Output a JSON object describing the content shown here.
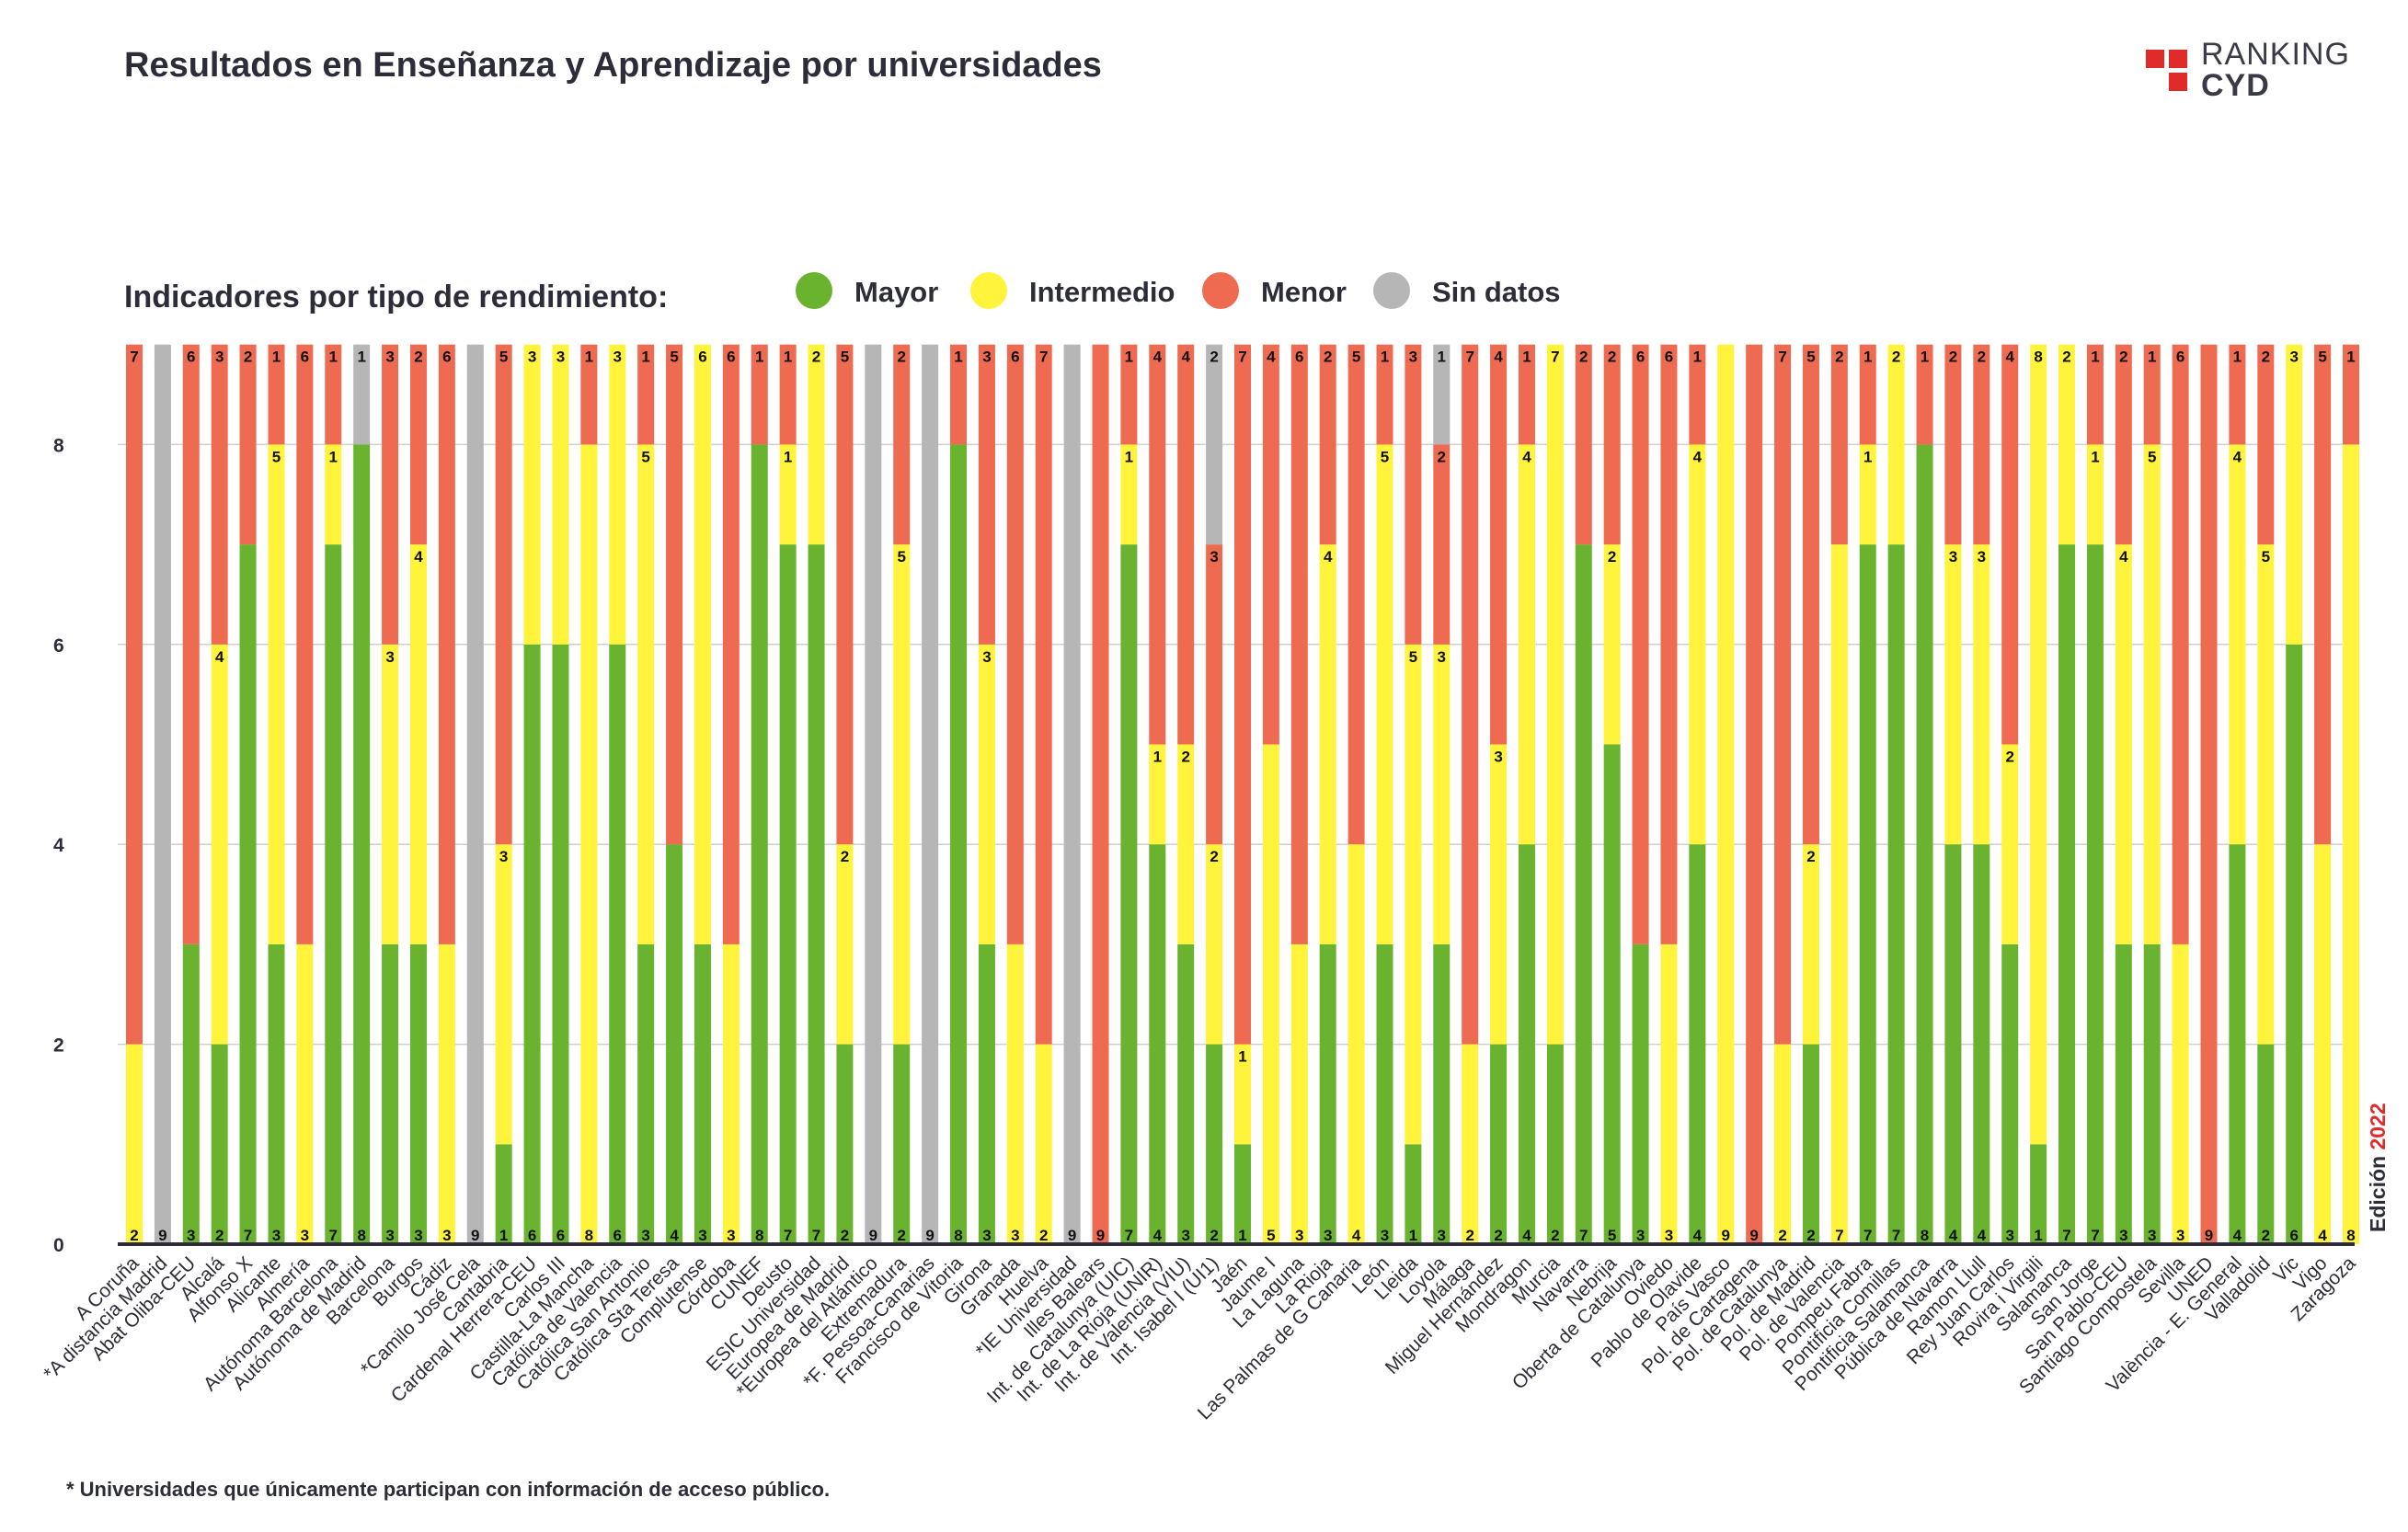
{
  "title": "Resultados en Enseñanza y Aprendizaje por universidades",
  "logo": {
    "line1": "RANKING",
    "line2": "CYD"
  },
  "legend_title": "Indicadores por tipo de rendimiento:",
  "legend": [
    {
      "label": "Mayor",
      "color": "#6ab32e"
    },
    {
      "label": "Intermedio",
      "color": "#fff33b"
    },
    {
      "label": "Menor",
      "color": "#ee6b52"
    },
    {
      "label": "Sin datos",
      "color": "#b6b6b6"
    }
  ],
  "footnote": "* Universidades que únicamente participan con información de acceso público.",
  "edition": {
    "label": "Edición",
    "year": "2022"
  },
  "chart_data": {
    "type": "bar",
    "stacked": true,
    "ylim": [
      0,
      9
    ],
    "yticks": [
      "0",
      "2",
      "4",
      "6",
      "8"
    ],
    "grid": true,
    "categories": [
      "A Coruña",
      "*A distancia Madrid",
      "Abat Oliba-CEU",
      "Alcalá",
      "Alfonso X",
      "Alicante",
      "Almería",
      "Autónoma Barcelona",
      "Autónoma de Madrid",
      "Barcelona",
      "Burgos",
      "Cádiz",
      "*Camilo José Cela",
      "Cantabria",
      "Cardenal Herrera-CEU",
      "Carlos III",
      "Castilla-La Mancha",
      "Católica de Valencia",
      "Católica San Antonio",
      "Católica Sta Teresa",
      "Complutense",
      "Córdoba",
      "CUNEF",
      "Deusto",
      "ESIC Universidad",
      "Europea de Madrid",
      "*Europea del Atlántico",
      "Extremadura",
      "*F. Pessoa-Canarias",
      "Francisco de Vitoria",
      "Girona",
      "Granada",
      "Huelva",
      "*IE Universidad",
      "Illes Balears",
      "Int. de Catalunya (UIC)",
      "Int. de La Rioja (UNIR)",
      "Int. de Valencia (VIU)",
      "Int. Isabel I (UI1)",
      "Jaén",
      "Jaume I",
      "La Laguna",
      "La Rioja",
      "Las Palmas de G Canaria",
      "León",
      "Lleida",
      "Loyola",
      "Málaga",
      "Miguel Hernández",
      "Mondragon",
      "Murcia",
      "Navarra",
      "Nebrija",
      "Oberta de Catalunya",
      "Oviedo",
      "Pablo de Olavide",
      "País Vasco",
      "Pol. de Cartagena",
      "Pol. de Catalunya",
      "Pol. de Madrid",
      "Pol. de Valencia",
      "Pompeu Fabra",
      "Pontificia Comillas",
      "Pontificia Salamanca",
      "Pública de Navarra",
      "Ramon Llull",
      "Rey Juan Carlos",
      "Rovira i Virgili",
      "Salamanca",
      "San Jorge",
      "San Pablo-CEU",
      "Santiago Compostela",
      "Sevilla",
      "UNED",
      "València - E. General",
      "Valladolid",
      "Vic",
      "Vigo",
      "Zaragoza"
    ],
    "series": [
      {
        "name": "Mayor",
        "color": "#6ab32e",
        "values": [
          0,
          0,
          3,
          2,
          7,
          3,
          0,
          7,
          8,
          3,
          3,
          0,
          0,
          1,
          6,
          6,
          0,
          6,
          3,
          4,
          3,
          0,
          8,
          7,
          7,
          2,
          0,
          2,
          0,
          8,
          3,
          0,
          0,
          0,
          0,
          7,
          4,
          3,
          2,
          1,
          0,
          0,
          3,
          0,
          3,
          1,
          3,
          0,
          2,
          4,
          2,
          7,
          5,
          3,
          0,
          4,
          0,
          0,
          0,
          2,
          0,
          7,
          7,
          8,
          4,
          4,
          3,
          1,
          7,
          7,
          3,
          3,
          0,
          0,
          4,
          2,
          6,
          0,
          0
        ]
      },
      {
        "name": "Intermedio",
        "color": "#fff33b",
        "values": [
          2,
          0,
          0,
          4,
          0,
          5,
          3,
          1,
          0,
          3,
          4,
          3,
          0,
          3,
          3,
          3,
          8,
          3,
          5,
          0,
          6,
          3,
          0,
          1,
          2,
          2,
          0,
          5,
          0,
          0,
          3,
          3,
          2,
          0,
          0,
          1,
          1,
          2,
          2,
          1,
          5,
          3,
          4,
          4,
          5,
          5,
          3,
          2,
          3,
          4,
          7,
          0,
          2,
          0,
          3,
          4,
          9,
          0,
          2,
          2,
          7,
          1,
          2,
          0,
          3,
          3,
          2,
          8,
          2,
          1,
          4,
          5,
          3,
          0,
          4,
          5,
          3,
          4,
          8
        ]
      },
      {
        "name": "Menor",
        "color": "#ee6b52",
        "values": [
          7,
          0,
          6,
          3,
          2,
          1,
          6,
          1,
          0,
          3,
          2,
          6,
          0,
          5,
          0,
          0,
          1,
          0,
          1,
          5,
          0,
          6,
          1,
          1,
          0,
          5,
          0,
          2,
          0,
          1,
          3,
          6,
          7,
          0,
          9,
          1,
          4,
          4,
          3,
          7,
          4,
          6,
          2,
          5,
          1,
          3,
          2,
          7,
          4,
          1,
          0,
          2,
          2,
          6,
          6,
          1,
          0,
          9,
          7,
          5,
          2,
          1,
          0,
          1,
          2,
          2,
          4,
          0,
          0,
          1,
          2,
          1,
          6,
          9,
          1,
          2,
          0,
          5,
          1
        ]
      },
      {
        "name": "Sin datos",
        "color": "#b6b6b6",
        "values": [
          0,
          9,
          0,
          0,
          0,
          0,
          0,
          0,
          1,
          0,
          0,
          0,
          9,
          0,
          0,
          0,
          0,
          0,
          0,
          0,
          0,
          0,
          0,
          0,
          0,
          0,
          9,
          0,
          9,
          0,
          0,
          0,
          0,
          9,
          0,
          0,
          0,
          0,
          2,
          0,
          0,
          0,
          0,
          0,
          0,
          0,
          1,
          0,
          0,
          0,
          0,
          0,
          0,
          0,
          0,
          0,
          0,
          0,
          0,
          0,
          0,
          0,
          0,
          0,
          0,
          0,
          0,
          0,
          0,
          0,
          0,
          0,
          0,
          0,
          0,
          0,
          0,
          0,
          0
        ]
      }
    ],
    "zero_labels": [
      "2",
      "9",
      "3",
      "2",
      "7",
      "3",
      "3",
      "7",
      "8",
      "3",
      "3",
      "3",
      "9",
      "1",
      "6",
      "6",
      "8",
      "6",
      "3",
      "4",
      "3",
      "3",
      "8",
      "7",
      "7",
      "2",
      "9",
      "2",
      "9",
      "8",
      "3",
      "3",
      "2",
      "9",
      "9",
      "7",
      "4",
      "3",
      "2",
      "1",
      "5",
      "3",
      "3",
      "4",
      "3",
      "1",
      "3",
      "2",
      "2",
      "4",
      "2",
      "7",
      "5",
      "3",
      "3",
      "4",
      "9",
      "9",
      "2",
      "2",
      "7",
      "7",
      "7",
      "8",
      "4",
      "4",
      "3",
      "1",
      "7",
      "7",
      "3",
      "3",
      "3",
      "9",
      "4",
      "2",
      "6",
      "4",
      "8"
    ]
  }
}
